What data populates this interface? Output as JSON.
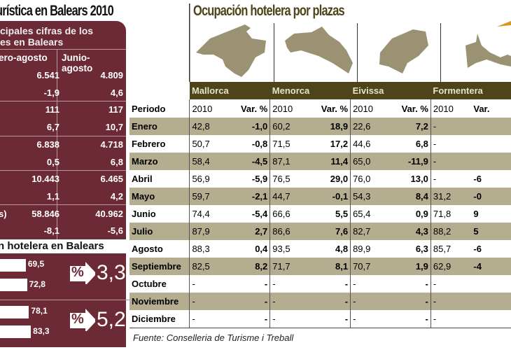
{
  "left": {
    "title": "urística en Balears 2010",
    "header_line1": "cipales cifras de los",
    "header_line2": "es en Balears",
    "columns": [
      "ero-agosto",
      "Junio-agosto"
    ],
    "rows": [
      {
        "label": "",
        "a": "6.541",
        "b": "4.809"
      },
      {
        "label": "",
        "a": "-1,9",
        "b": "4,6"
      },
      {
        "label": "",
        "a": "111",
        "b": "117"
      },
      {
        "label": "",
        "a": "6,7",
        "b": "10,7"
      },
      {
        "label": "",
        "a": "6.838",
        "b": "4.718"
      },
      {
        "label": "",
        "a": "0,5",
        "b": "6,8"
      },
      {
        "label": "",
        "a": "10.443",
        "b": "6.465"
      },
      {
        "label": "",
        "a": "1,1",
        "b": "4,2"
      },
      {
        "label": "s)",
        "a": "58.846",
        "b": "40.962"
      },
      {
        "label": "",
        "a": "-8,1",
        "b": "-5,6"
      }
    ],
    "subtitle": "n hotelera en Balears",
    "bars": [
      {
        "v1": "69,5",
        "v2": "72,8",
        "sym": "%",
        "diff": "3,3"
      },
      {
        "v1": "78,1",
        "v2": "83,3",
        "sym": "%",
        "diff": "5,2"
      }
    ]
  },
  "chart_data": {
    "type": "table",
    "title": "Ocupación hotelera por plazas",
    "groups": [
      "Mallorca",
      "Menorca",
      "Eivissa",
      "Formentera"
    ],
    "subheaders": [
      "Periodo",
      "2010",
      "Var. %",
      "2010",
      "Var. %",
      "2010",
      "Var. %",
      "2010",
      "Var."
    ],
    "rows": [
      [
        "Enero",
        "42,8",
        "-1,0",
        "60,2",
        "18,9",
        "22,6",
        "7,2",
        "-",
        ""
      ],
      [
        "Febrero",
        "50,7",
        "-0,8",
        "71,5",
        "17,2",
        "44,6",
        "6,8",
        "-",
        ""
      ],
      [
        "Marzo",
        "58,4",
        "-4,5",
        "87,1",
        "11,4",
        "65,0",
        "-11,9",
        "-",
        ""
      ],
      [
        "Abril",
        "56,9",
        "-5,9",
        "76,5",
        "29,0",
        "76,0",
        "13,0",
        "-",
        "-6"
      ],
      [
        "Mayo",
        "59,7",
        "-2,1",
        "44,7",
        "-0,1",
        "54,3",
        "8,4",
        "31,2",
        "-0"
      ],
      [
        "Junio",
        "74,4",
        "-5,4",
        "66,6",
        "5,5",
        "65,4",
        "0,9",
        "71,8",
        "9"
      ],
      [
        "Julio",
        "87,9",
        "2,7",
        "86,6",
        "7,6",
        "82,7",
        "4,3",
        "88,2",
        "5"
      ],
      [
        "Agosto",
        "88,3",
        "0,4",
        "93,5",
        "4,8",
        "89,9",
        "6,3",
        "85,7",
        "-6"
      ],
      [
        "Septiembre",
        "82,5",
        "8,2",
        "71,7",
        "8,1",
        "70,7",
        "1,9",
        "62,9",
        "-4"
      ],
      [
        "Octubre",
        "-",
        "-",
        "-",
        "-",
        "-",
        "-",
        "-",
        ""
      ],
      [
        "Noviembre",
        "-",
        "-",
        "-",
        "-",
        "-",
        "-",
        "-",
        ""
      ],
      [
        "Diciembre",
        "-",
        "-",
        "-",
        "-",
        "-",
        "-",
        "-",
        ""
      ]
    ],
    "source": "Fuente: Conselleria de Turisme i Treball"
  },
  "colors": {
    "maroon": "#6b2a35",
    "olive": "#4d4519",
    "stripe": "#b5ad8f",
    "map": "#9b9273"
  }
}
